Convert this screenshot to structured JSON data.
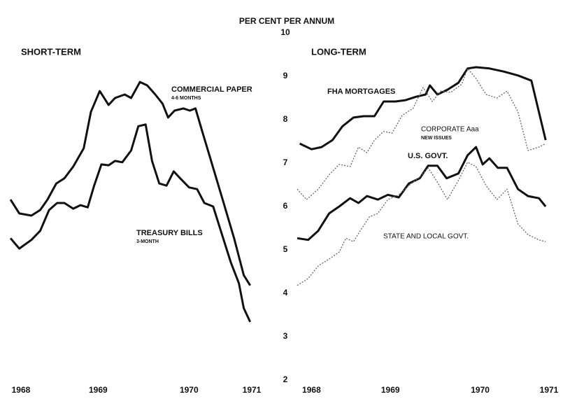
{
  "y_axis": {
    "label": "PER CENT PER ANNUM",
    "ylim": [
      2,
      10
    ],
    "yticks": [
      2,
      3,
      4,
      5,
      6,
      7,
      8,
      9,
      10
    ]
  },
  "chart_data": [
    {
      "type": "line",
      "title": "SHORT-TERM",
      "xlim": [
        1968,
        1971
      ],
      "xticks": [
        {
          "value": 1968.13,
          "label": "1968"
        },
        {
          "value": 1969.09,
          "label": "1969"
        },
        {
          "value": 1970.22,
          "label": "1970"
        },
        {
          "value": 1971,
          "label": "1971"
        }
      ],
      "series": [
        {
          "name": "COMMERCIAL PAPER",
          "note": "4-6 MONTHS",
          "color": "#111",
          "style": "bold",
          "x": [
            1968,
            1968.11,
            1968.26,
            1968.37,
            1968.46,
            1968.57,
            1968.67,
            1968.78,
            1968.91,
            1969,
            1969.11,
            1969.22,
            1969.3,
            1969.42,
            1969.5,
            1969.61,
            1969.7,
            1969.8,
            1969.89,
            1969.96,
            1970.04,
            1970.15,
            1970.23,
            1970.3,
            1970.39,
            1970.52,
            1970.65,
            1970.78,
            1970.9,
            1970.98
          ],
          "values": [
            6.16,
            5.84,
            5.79,
            5.92,
            6.16,
            6.53,
            6.65,
            6.92,
            7.34,
            8.18,
            8.66,
            8.34,
            8.5,
            8.58,
            8.5,
            8.87,
            8.79,
            8.58,
            8.37,
            8.05,
            8.21,
            8.26,
            8.21,
            8.26,
            7.69,
            6.89,
            6.08,
            5.27,
            4.42,
            4.18
          ]
        },
        {
          "name": "TREASURY BILLS",
          "note": "3-MONTH",
          "color": "#111",
          "style": "bold",
          "x": [
            1968,
            1968.11,
            1968.26,
            1968.37,
            1968.48,
            1968.58,
            1968.67,
            1968.78,
            1968.87,
            1968.96,
            1969.04,
            1969.13,
            1969.22,
            1969.3,
            1969.39,
            1969.5,
            1969.59,
            1969.68,
            1969.76,
            1969.85,
            1969.94,
            1970.03,
            1970.11,
            1970.22,
            1970.32,
            1970.41,
            1970.52,
            1970.63,
            1970.74,
            1970.84,
            1970.9,
            1970.98
          ],
          "values": [
            5.27,
            5.03,
            5.23,
            5.44,
            5.92,
            6.08,
            6.08,
            5.95,
            6.03,
            5.98,
            6.48,
            6.97,
            6.95,
            7.05,
            7.02,
            7.29,
            7.85,
            7.89,
            7.05,
            6.53,
            6.48,
            6.81,
            6.65,
            6.44,
            6.4,
            6.08,
            6,
            5.35,
            4.71,
            4.23,
            3.66,
            3.34
          ]
        }
      ]
    },
    {
      "type": "line",
      "title": "LONG-TERM",
      "xlim": [
        1968,
        1971
      ],
      "xticks": [
        {
          "value": 1968.17,
          "label": "1968"
        },
        {
          "value": 1969.11,
          "label": "1969"
        },
        {
          "value": 1970.18,
          "label": "1970"
        },
        {
          "value": 1971,
          "label": "1971"
        }
      ],
      "series": [
        {
          "name": "FHA MORTGAGES",
          "color": "#111",
          "style": "bold",
          "x": [
            1968.03,
            1968.17,
            1968.29,
            1968.42,
            1968.54,
            1968.67,
            1968.79,
            1968.92,
            1969.03,
            1969.17,
            1969.29,
            1969.42,
            1969.53,
            1969.58,
            1969.67,
            1969.79,
            1969.92,
            1970.03,
            1970.13,
            1970.29,
            1970.46,
            1970.63,
            1970.79,
            1970.96
          ],
          "values": [
            7.45,
            7.32,
            7.37,
            7.53,
            7.85,
            8.05,
            8.08,
            8.08,
            8.42,
            8.42,
            8.45,
            8.53,
            8.58,
            8.79,
            8.58,
            8.69,
            8.85,
            9.18,
            9.21,
            9.18,
            9.11,
            9.02,
            8.9,
            7.53
          ]
        },
        {
          "name": "CORPORATE Aaa",
          "note": "NEW ISSUES",
          "color": "#666",
          "style": "dotted",
          "x": [
            1968,
            1968.11,
            1968.25,
            1968.38,
            1968.5,
            1968.63,
            1968.73,
            1968.83,
            1968.92,
            1969.03,
            1969.13,
            1969.25,
            1969.38,
            1969.5,
            1969.61,
            1969.71,
            1969.83,
            1969.96,
            1970.03,
            1970.13,
            1970.25,
            1970.38,
            1970.5,
            1970.63,
            1970.75,
            1970.88,
            1970.96
          ],
          "values": [
            6.4,
            6.16,
            6.4,
            6.73,
            6.97,
            6.92,
            7.37,
            7.24,
            7.53,
            7.73,
            7.69,
            8.1,
            8.26,
            8.74,
            8.42,
            8.66,
            8.63,
            8.82,
            9.18,
            8.95,
            8.58,
            8.5,
            8.66,
            8.18,
            7.29,
            7.37,
            7.45
          ]
        },
        {
          "name": "U.S. GOVT.",
          "color": "#111",
          "style": "bold",
          "x": [
            1968,
            1968.13,
            1968.25,
            1968.38,
            1968.5,
            1968.63,
            1968.73,
            1968.83,
            1968.96,
            1969.08,
            1969.21,
            1969.33,
            1969.46,
            1969.56,
            1969.67,
            1969.78,
            1969.92,
            1970.03,
            1970.13,
            1970.21,
            1970.29,
            1970.39,
            1970.5,
            1970.63,
            1970.75,
            1970.88,
            1970.96
          ],
          "values": [
            5.27,
            5.23,
            5.44,
            5.84,
            6,
            6.19,
            6.08,
            6.24,
            6.16,
            6.27,
            6.21,
            6.53,
            6.65,
            6.94,
            6.94,
            6.65,
            6.76,
            7.18,
            7.37,
            6.97,
            7.11,
            6.89,
            6.89,
            6.4,
            6.24,
            6.19,
            6
          ]
        },
        {
          "name": "STATE AND LOCAL GOVT.",
          "color": "#666",
          "style": "dotted",
          "x": [
            1968,
            1968.13,
            1968.25,
            1968.38,
            1968.5,
            1968.58,
            1968.67,
            1968.75,
            1968.86,
            1968.96,
            1969.08,
            1969.21,
            1969.33,
            1969.46,
            1969.56,
            1969.67,
            1969.79,
            1969.92,
            1970.03,
            1970.13,
            1970.25,
            1970.38,
            1970.5,
            1970.63,
            1970.75,
            1970.88,
            1970.96
          ],
          "values": [
            4.18,
            4.34,
            4.63,
            4.79,
            4.95,
            5.27,
            5.19,
            5.44,
            5.76,
            5.84,
            6.16,
            6.27,
            6.48,
            6.68,
            6.89,
            6.56,
            6.16,
            6.6,
            7.02,
            6.92,
            6.48,
            6.16,
            6.4,
            5.6,
            5.35,
            5.23,
            5.19
          ]
        }
      ]
    }
  ]
}
